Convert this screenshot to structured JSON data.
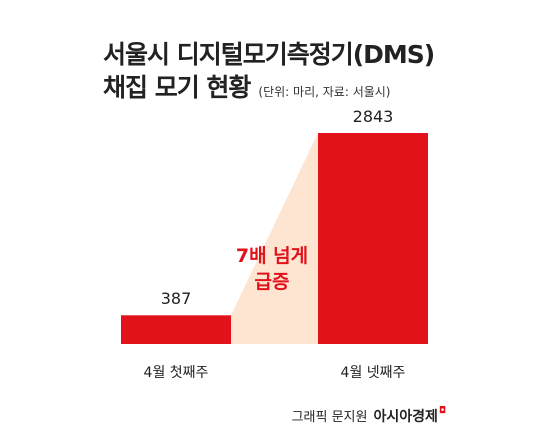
{
  "title": {
    "line1": "서울시 디지털모기측정기(DMS)",
    "line2": "채집 모기 현황",
    "unit": "(단위: 마리, 자료: 서울시)"
  },
  "annotation": {
    "line1": "7배 넘게",
    "line2": "급증"
  },
  "credit": {
    "text": "그래픽 문지원",
    "brand": "아시아경제",
    "mark": "◘"
  },
  "colors": {
    "bar": "#e2121b",
    "connector": "#fde5d2",
    "annotation": "#e2121b"
  },
  "chart_data": {
    "type": "bar",
    "categories": [
      "4월 첫째주",
      "4월 넷째주"
    ],
    "values": [
      387,
      2843
    ],
    "ylim": [
      0,
      2843
    ],
    "grid": false,
    "legend": "none"
  }
}
